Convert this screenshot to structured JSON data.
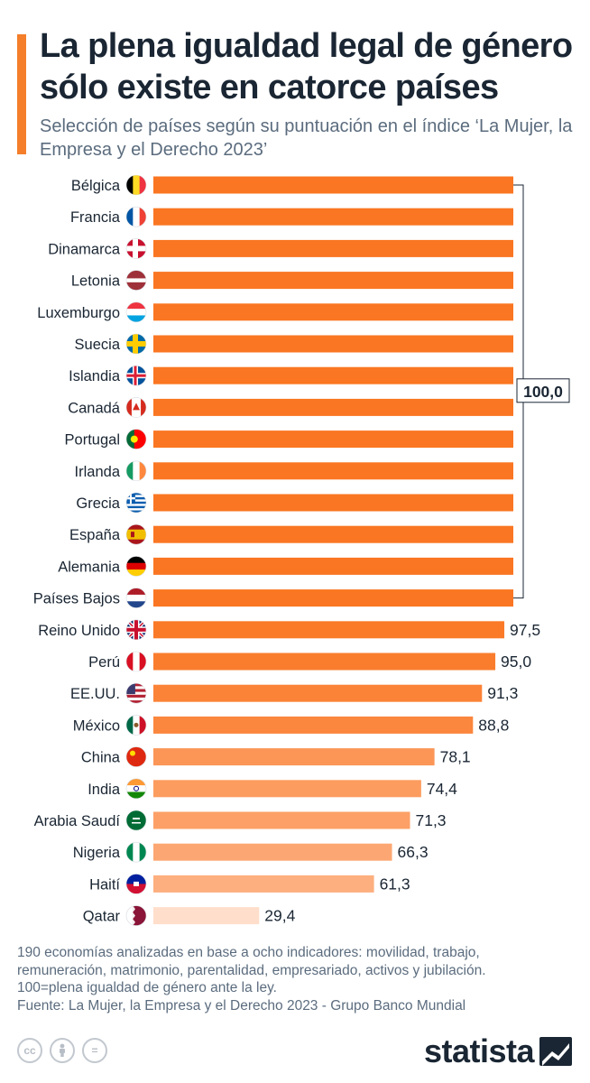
{
  "header": {
    "title": "La plena igualdad legal de género sólo existe en catorce países",
    "subtitle": "Selección de países según su puntuación en el índice ‘La Mujer, la Empresa y el Derecho 2023’"
  },
  "colors": {
    "accent": "#f47e2a",
    "bar_dark": "#fa7622",
    "bar_light": "#ffe4d6",
    "text": "#1a2633",
    "muted": "#5b6c7e"
  },
  "chart_data": {
    "type": "bar",
    "orientation": "horizontal",
    "categories": [
      "Bélgica",
      "Francia",
      "Dinamarca",
      "Letonia",
      "Luxemburgo",
      "Suecia",
      "Islandia",
      "Canadá",
      "Portugal",
      "Irlanda",
      "Grecia",
      "España",
      "Alemania",
      "Países Bajos",
      "Reino Unido",
      "Perú",
      "EE.UU.",
      "México",
      "China",
      "India",
      "Arabia Saudí",
      "Nigeria",
      "Haití",
      "Qatar"
    ],
    "values": [
      100.0,
      100.0,
      100.0,
      100.0,
      100.0,
      100.0,
      100.0,
      100.0,
      100.0,
      100.0,
      100.0,
      100.0,
      100.0,
      100.0,
      97.5,
      95.0,
      91.3,
      88.8,
      78.1,
      74.4,
      71.3,
      66.3,
      61.3,
      29.4
    ],
    "value_labels": [
      "",
      "",
      "",
      "",
      "",
      "",
      "",
      "",
      "",
      "",
      "",
      "",
      "",
      "",
      "97,5",
      "95,0",
      "91,3",
      "88,8",
      "78,1",
      "74,4",
      "71,3",
      "66,3",
      "61,3",
      "29,4"
    ],
    "flags": [
      "belgium",
      "france",
      "denmark",
      "latvia",
      "luxembourg",
      "sweden",
      "iceland",
      "canada",
      "portugal",
      "ireland",
      "greece",
      "spain",
      "germany",
      "netherlands",
      "united-kingdom",
      "peru",
      "united-states",
      "mexico",
      "china",
      "india",
      "saudi-arabia",
      "nigeria",
      "haiti",
      "qatar"
    ],
    "group_bracket": {
      "first": 0,
      "last": 13,
      "label": "100,0"
    },
    "xlim": [
      0,
      100
    ],
    "grid": false,
    "title": "",
    "xlabel": "",
    "ylabel": ""
  },
  "footnote": {
    "lines": [
      "190 economías analizadas en base a ocho indicadores: movilidad, trabajo,",
      "remuneración, matrimonio, parentalidad, empresariado, activos y jubilación.",
      "100=plena igualdad de género ante la ley."
    ],
    "source": "Fuente: La Mujer, la Empresa y el Derecho 2023 - Grupo Banco Mundial"
  },
  "license_icons": [
    "cc-icon",
    "person-icon",
    "equals-icon"
  ],
  "license_text": [
    "cc",
    "",
    "="
  ],
  "brand": {
    "name": "statista",
    "logo_icon": "statista-logo-icon"
  }
}
